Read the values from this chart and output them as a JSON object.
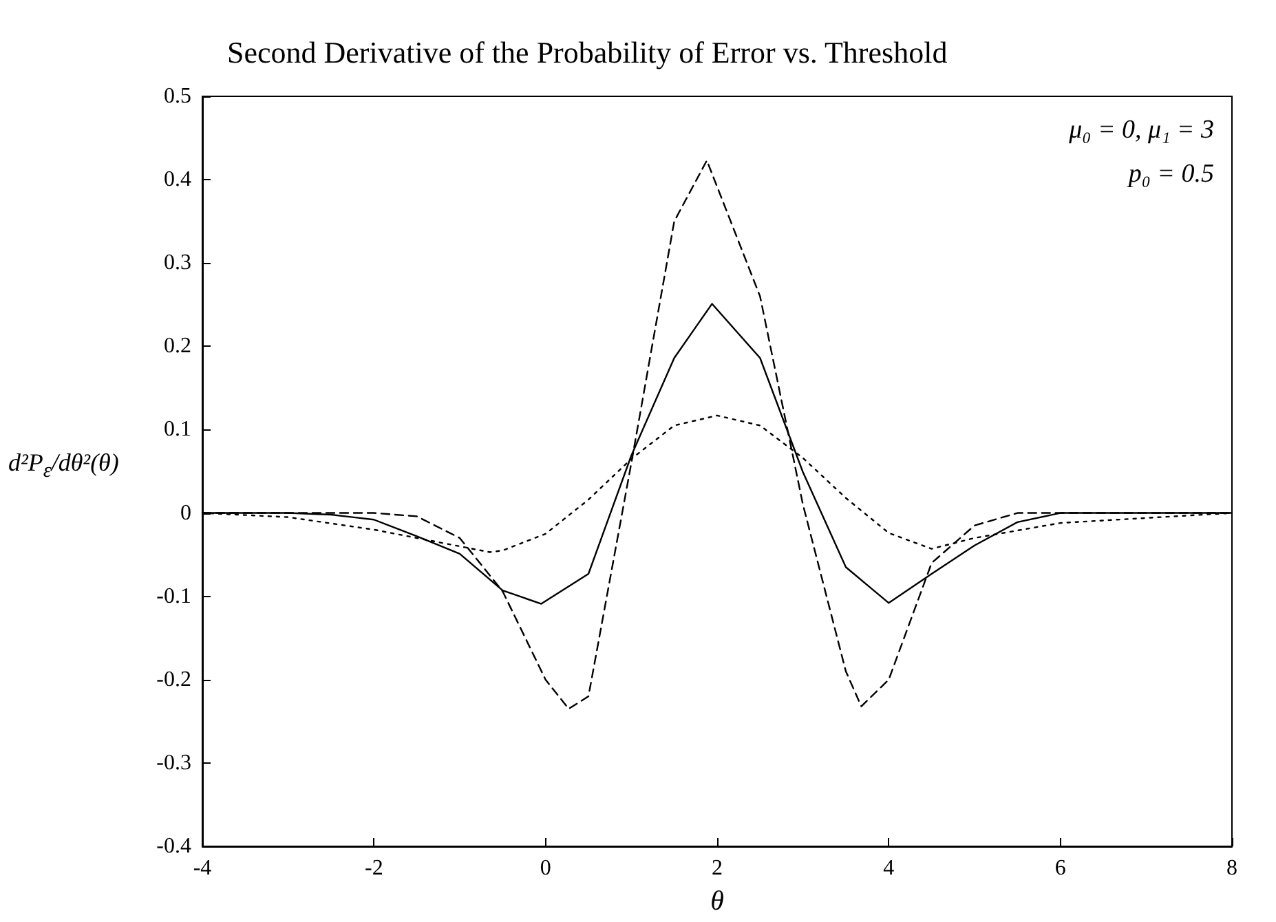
{
  "chart_data": {
    "type": "line",
    "title": "Second Derivative of the Probability of Error vs. Threshold",
    "xlabel": "θ",
    "ylabel": "d²P$_{ε}$/dθ²(θ)",
    "annotations": [
      "μ₀ = 0, μ₁ = 3",
      "p₀ = 0.5"
    ],
    "series": [
      {
        "color": "#000000",
        "line_style": "solid",
        "x": [
          -4,
          -3.5,
          -3,
          -2.5,
          -2,
          -1.5,
          -1,
          -0.5,
          -0.05,
          0.5,
          1,
          1.5,
          1.94,
          2.5,
          3,
          3.5,
          4,
          4.5,
          5,
          5.5,
          6,
          7,
          8
        ],
        "values": [
          0,
          0,
          0,
          -0.002,
          -0.008,
          -0.028,
          -0.049,
          -0.093,
          -0.109,
          -0.073,
          0.069,
          0.186,
          0.251,
          0.186,
          0.049,
          -0.065,
          -0.108,
          -0.073,
          -0.039,
          -0.011,
          0,
          0,
          0
        ]
      },
      {
        "color": "#000000",
        "line_style": "dashed",
        "x": [
          -4,
          -3,
          -2,
          -1.5,
          -1,
          -0.5,
          0,
          0.27,
          0.5,
          1,
          1.5,
          1.88,
          2.5,
          3,
          3.5,
          3.68,
          4,
          4.5,
          5,
          5.5,
          6,
          7,
          8
        ],
        "values": [
          0,
          0,
          0,
          -0.004,
          -0.03,
          -0.094,
          -0.2,
          -0.235,
          -0.22,
          0.06,
          0.35,
          0.423,
          0.26,
          0.01,
          -0.19,
          -0.232,
          -0.2,
          -0.06,
          -0.015,
          0,
          0,
          0,
          0
        ]
      },
      {
        "color": "#000000",
        "line_style": "dotted",
        "x": [
          -4,
          -3,
          -2,
          -1,
          -0.65,
          -0.5,
          0,
          0.5,
          1,
          1.5,
          2,
          2.5,
          3,
          3.5,
          4,
          4.5,
          5,
          6,
          7,
          8
        ],
        "values": [
          0,
          -0.005,
          -0.02,
          -0.04,
          -0.047,
          -0.045,
          -0.025,
          0.016,
          0.065,
          0.105,
          0.117,
          0.105,
          0.066,
          0.018,
          -0.024,
          -0.043,
          -0.03,
          -0.012,
          -0.006,
          0
        ]
      }
    ],
    "xlim": [
      -4,
      8
    ],
    "xticks": [
      -4,
      -2,
      0,
      2,
      4,
      6,
      8
    ],
    "ylim": [
      -0.4,
      0.5
    ],
    "yticks": [
      -0.4,
      -0.3,
      -0.2,
      -0.1,
      0,
      0.1,
      0.2,
      0.3,
      0.4,
      0.5
    ],
    "grid": false,
    "marker": "none"
  }
}
